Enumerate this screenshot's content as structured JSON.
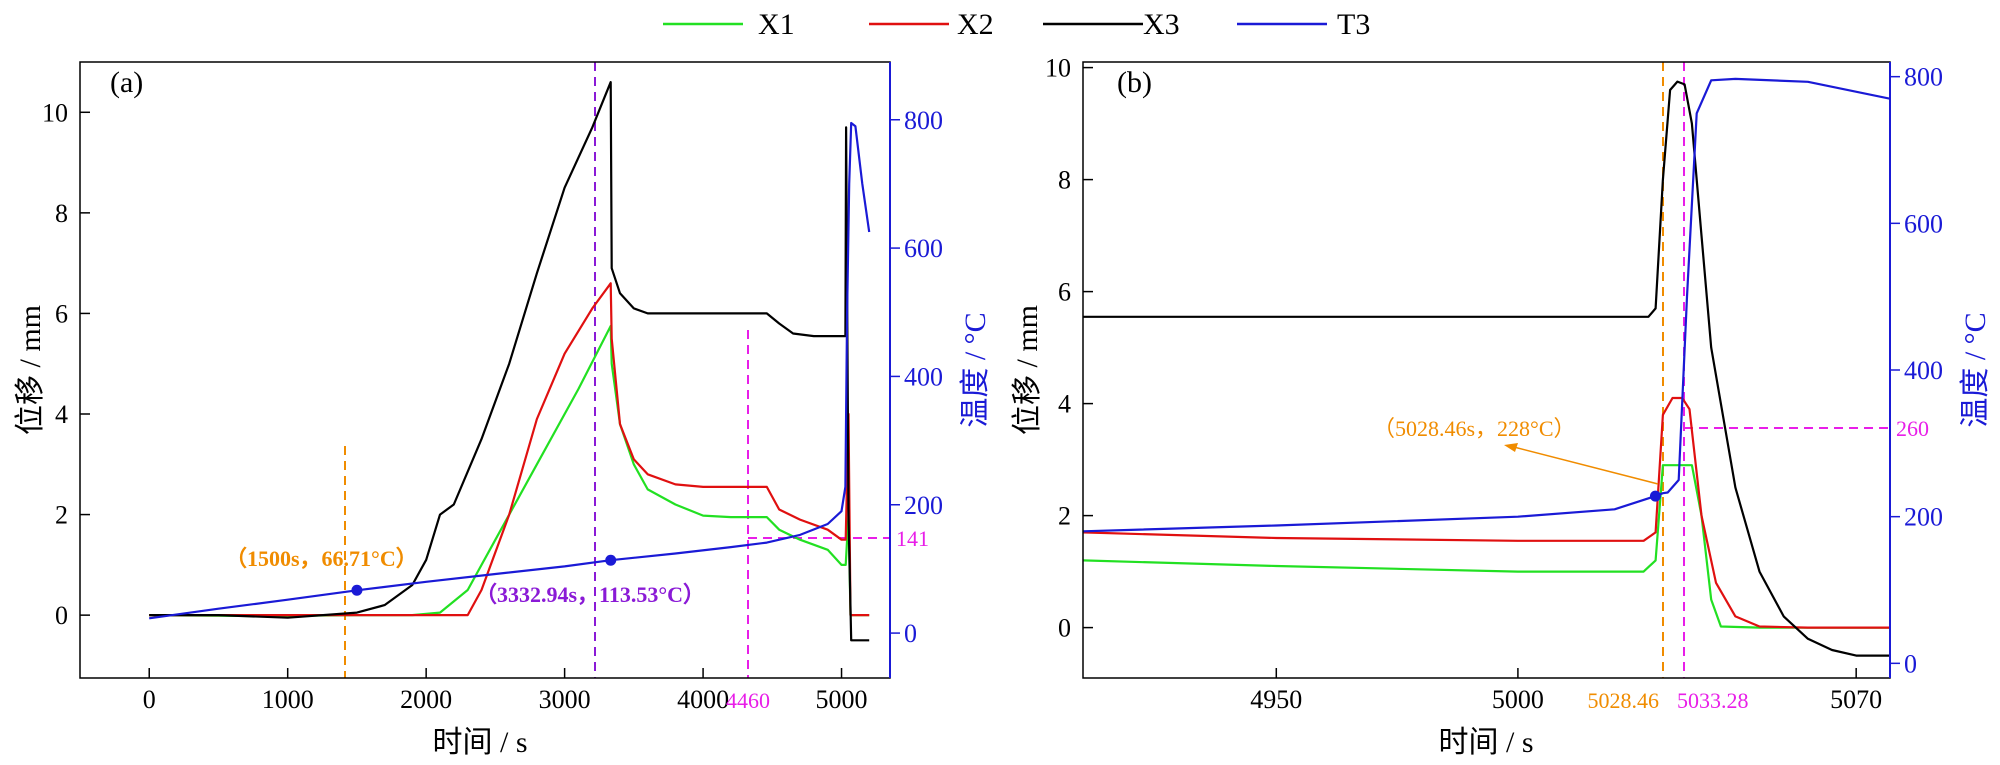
{
  "legend": [
    {
      "name": "X1",
      "color": "#22e022"
    },
    {
      "name": "X2",
      "color": "#e01010"
    },
    {
      "name": "X3",
      "color": "#000000"
    },
    {
      "name": "T3",
      "color": "#1a1ad6"
    }
  ],
  "colors": {
    "orange": "#f08c00",
    "magenta": "#e81ee8",
    "purple": "#8a1ad6",
    "axis_right": "#1a1ad6"
  },
  "chart_data": [
    {
      "panel": "(a)",
      "type": "line",
      "xlabel": "时间 / s",
      "ylabel": "位移 / mm",
      "y2label": "温度 / °C",
      "xlim": [
        -500,
        5350
      ],
      "ylim": [
        -1.25,
        11.0
      ],
      "y2lim": [
        -70,
        890
      ],
      "xticks": [
        0,
        1000,
        2000,
        3000,
        4000,
        5000
      ],
      "xtick_labels": [
        "0",
        "1000",
        "2000",
        "3000",
        "4000",
        "5000"
      ],
      "yticks": [
        0,
        2,
        4,
        6,
        8,
        10
      ],
      "ytick_labels": [
        "0",
        "2",
        "4",
        "6",
        "8",
        "10"
      ],
      "y2ticks": [
        0,
        200,
        400,
        600,
        800
      ],
      "y2tick_labels": [
        "0",
        "200",
        "400",
        "600",
        "800"
      ],
      "series": [
        {
          "name": "X1",
          "axis": "left",
          "x": [
            0,
            800,
            1500,
            1900,
            2100,
            2300,
            2500,
            2800,
            3100,
            3332.9,
            3340,
            3400,
            3500,
            3600,
            3800,
            4000,
            4200,
            4460,
            4550,
            4700,
            4900,
            5000,
            5030,
            5050,
            5065,
            5200
          ],
          "y": [
            0,
            -0.02,
            0,
            0,
            0.05,
            0.5,
            1.5,
            3.0,
            4.5,
            5.75,
            5.0,
            3.8,
            3.0,
            2.5,
            2.2,
            1.98,
            1.95,
            1.95,
            1.7,
            1.5,
            1.3,
            1.0,
            1.0,
            2.0,
            0,
            0
          ]
        },
        {
          "name": "X2",
          "axis": "left",
          "x": [
            0,
            1500,
            2300,
            2400,
            2600,
            2800,
            3000,
            3200,
            3332.9,
            3340,
            3400,
            3500,
            3600,
            3800,
            4000,
            4200,
            4460,
            4550,
            4700,
            4900,
            5000,
            5030,
            5050,
            5065,
            5200
          ],
          "y": [
            0,
            0,
            0,
            0.5,
            2.0,
            3.9,
            5.2,
            6.1,
            6.6,
            5.5,
            3.8,
            3.1,
            2.8,
            2.6,
            2.55,
            2.55,
            2.55,
            2.1,
            1.9,
            1.7,
            1.5,
            1.5,
            4.0,
            0,
            0
          ]
        },
        {
          "name": "X3",
          "axis": "left",
          "x": [
            0,
            500,
            1000,
            1500,
            1700,
            1900,
            2000,
            2100,
            2200,
            2400,
            2600,
            2800,
            3000,
            3200,
            3332.9,
            3340,
            3400,
            3500,
            3600,
            3800,
            4000,
            4200,
            4460,
            4550,
            4650,
            4800,
            4900,
            5000,
            5028,
            5033,
            5050,
            5070,
            5200
          ],
          "y": [
            0,
            0,
            -0.05,
            0.05,
            0.2,
            0.6,
            1.1,
            2.0,
            2.2,
            3.5,
            5.0,
            6.8,
            8.5,
            9.7,
            10.6,
            6.9,
            6.4,
            6.1,
            6.0,
            6.0,
            6.0,
            6.0,
            6.0,
            5.8,
            5.6,
            5.55,
            5.55,
            5.55,
            5.55,
            9.7,
            2.0,
            -0.5,
            -0.5
          ]
        },
        {
          "name": "T3",
          "axis": "right",
          "x": [
            0,
            500,
            1000,
            1500,
            2000,
            2500,
            3000,
            3332.9,
            3800,
            4200,
            4460,
            4700,
            4900,
            5000,
            5028,
            5040,
            5055,
            5070,
            5100,
            5150,
            5200
          ],
          "y": [
            23,
            38,
            52,
            66.71,
            80,
            92,
            104,
            113.53,
            124,
            134,
            141,
            153,
            170,
            190,
            228,
            500,
            700,
            795,
            790,
            700,
            625
          ]
        }
      ],
      "markers": [
        {
          "x": 1500,
          "y2": 66.71,
          "color": "orange"
        },
        {
          "x": 3332.94,
          "y2": 113.53,
          "color": "purple"
        }
      ],
      "annotations": {
        "point1": "（1500s，66.71°C）",
        "point2": "（3332.94s，113.53°C）",
        "vline_label": "4460",
        "hline_label": "141"
      }
    },
    {
      "panel": "(b)",
      "type": "line",
      "xlabel": "时间 / s",
      "ylabel": "位移 / mm",
      "y2label": "温度 / °C",
      "xlim": [
        4910,
        5077
      ],
      "ylim": [
        -0.9,
        10.1
      ],
      "y2lim": [
        -20,
        820
      ],
      "xticks": [
        4950,
        5000,
        5070
      ],
      "xtick_labels": [
        "4950",
        "5000",
        "5070"
      ],
      "yticks": [
        0,
        2,
        4,
        6,
        8,
        10
      ],
      "ytick_labels": [
        "0",
        "2",
        "4",
        "6",
        "8",
        "10"
      ],
      "y2ticks": [
        0,
        200,
        400,
        600,
        800
      ],
      "y2tick_labels": [
        "0",
        "200",
        "400",
        "600",
        "800"
      ],
      "series": [
        {
          "name": "X1",
          "axis": "left",
          "x": [
            4910,
            4950,
            5000,
            5026,
            5028.5,
            5030,
            5033,
            5036,
            5038,
            5040,
            5042,
            5050,
            5077
          ],
          "y": [
            1.2,
            1.1,
            1.0,
            1.0,
            1.2,
            2.9,
            2.9,
            2.9,
            2.0,
            0.5,
            0.02,
            0,
            0
          ]
        },
        {
          "name": "X2",
          "axis": "left",
          "x": [
            4910,
            4950,
            5000,
            5026,
            5028.5,
            5030,
            5032,
            5034,
            5035.5,
            5038,
            5041,
            5045,
            5050,
            5060,
            5077
          ],
          "y": [
            1.7,
            1.6,
            1.55,
            1.55,
            1.7,
            3.8,
            4.1,
            4.1,
            3.9,
            2.0,
            0.8,
            0.2,
            0.02,
            0,
            0
          ]
        },
        {
          "name": "X3",
          "axis": "left",
          "x": [
            4910,
            4950,
            5000,
            5027,
            5028.5,
            5030,
            5031.5,
            5033,
            5034.5,
            5036,
            5038,
            5040,
            5045,
            5050,
            5055,
            5060,
            5065,
            5070,
            5077
          ],
          "y": [
            5.55,
            5.55,
            5.55,
            5.55,
            5.7,
            8.0,
            9.6,
            9.75,
            9.7,
            9.0,
            7.0,
            5.0,
            2.5,
            1.0,
            0.2,
            -0.2,
            -0.4,
            -0.5,
            -0.5
          ]
        },
        {
          "name": "T3",
          "axis": "right",
          "x": [
            4910,
            4950,
            5000,
            5020,
            5028.46,
            5030,
            5031,
            5033.28,
            5035,
            5037,
            5040,
            5045,
            5060,
            5077
          ],
          "y": [
            180,
            188,
            200,
            210,
            228,
            232,
            233,
            250,
            500,
            750,
            795,
            797,
            793,
            770
          ]
        }
      ],
      "markers": [
        {
          "x": 5028.46,
          "y2": 228,
          "color": "blue"
        }
      ],
      "annotations": {
        "point1": "（5028.46s，228°C）",
        "vline1_label": "5028.46",
        "vline2_label": "5033.28",
        "hline_label": "260"
      }
    }
  ]
}
